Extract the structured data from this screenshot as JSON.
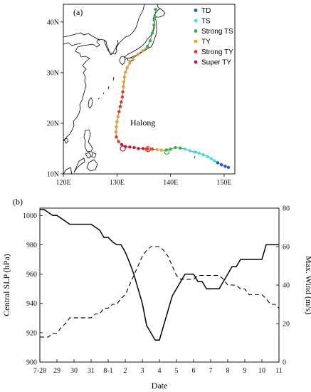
{
  "chart_data": [
    {
      "type": "scatter",
      "panel_label": "(a)",
      "annotation": "Halong",
      "xlim": [
        120,
        152
      ],
      "ylim": [
        10,
        43.5
      ],
      "x_ticks": [
        {
          "value": 120,
          "label": "120E"
        },
        {
          "value": 130,
          "label": "130E"
        },
        {
          "value": 140,
          "label": "140E"
        },
        {
          "value": 150,
          "label": "150E"
        }
      ],
      "y_ticks": [
        {
          "value": 10,
          "label": "10N"
        },
        {
          "value": 20,
          "label": "20N"
        },
        {
          "value": 30,
          "label": "30N"
        },
        {
          "value": 40,
          "label": "40N"
        }
      ],
      "legend_position": "top-right",
      "categories": [
        {
          "key": "TD",
          "name": "TD",
          "color": "#1f55d6"
        },
        {
          "key": "TS",
          "name": "TS",
          "color": "#3fe0dc"
        },
        {
          "key": "STS",
          "name": "Strong TS",
          "color": "#2fb83a"
        },
        {
          "key": "TY",
          "name": "TY",
          "color": "#f0a020"
        },
        {
          "key": "STY",
          "name": "Strong TY",
          "color": "#e43a1f"
        },
        {
          "key": "SuperTY",
          "name": "Super TY",
          "color": "#d3143a"
        }
      ],
      "track": [
        {
          "lon": 150.8,
          "lat": 11.3,
          "cat": "TD"
        },
        {
          "lon": 150.2,
          "lat": 11.5,
          "cat": "TD"
        },
        {
          "lon": 149.5,
          "lat": 11.8,
          "cat": "TD"
        },
        {
          "lon": 148.8,
          "lat": 12.2,
          "cat": "TD"
        },
        {
          "lon": 148.2,
          "lat": 12.6,
          "cat": "TS"
        },
        {
          "lon": 147.6,
          "lat": 13.0,
          "cat": "TS"
        },
        {
          "lon": 146.9,
          "lat": 13.4,
          "cat": "TS"
        },
        {
          "lon": 146.1,
          "lat": 13.8,
          "cat": "TS"
        },
        {
          "lon": 145.3,
          "lat": 14.1,
          "cat": "TS"
        },
        {
          "lon": 144.5,
          "lat": 14.3,
          "cat": "TS"
        },
        {
          "lon": 143.6,
          "lat": 14.6,
          "cat": "TS"
        },
        {
          "lon": 142.7,
          "lat": 14.9,
          "cat": "TS"
        },
        {
          "lon": 141.8,
          "lat": 15.1,
          "cat": "STS"
        },
        {
          "lon": 140.9,
          "lat": 15.2,
          "cat": "STS"
        },
        {
          "lon": 140.0,
          "lat": 14.9,
          "cat": "STS"
        },
        {
          "lon": 139.2,
          "lat": 14.7,
          "cat": "STS"
        },
        {
          "lon": 138.3,
          "lat": 14.7,
          "cat": "TY"
        },
        {
          "lon": 137.5,
          "lat": 14.8,
          "cat": "TY"
        },
        {
          "lon": 136.6,
          "lat": 14.9,
          "cat": "STY"
        },
        {
          "lon": 135.7,
          "lat": 14.9,
          "cat": "STY"
        },
        {
          "lon": 134.9,
          "lat": 15.0,
          "cat": "SuperTY"
        },
        {
          "lon": 134.0,
          "lat": 15.0,
          "cat": "SuperTY"
        },
        {
          "lon": 133.2,
          "lat": 15.2,
          "cat": "SuperTY"
        },
        {
          "lon": 132.4,
          "lat": 15.3,
          "cat": "SuperTY"
        },
        {
          "lon": 131.6,
          "lat": 15.4,
          "cat": "SuperTY"
        },
        {
          "lon": 130.9,
          "lat": 15.8,
          "cat": "SuperTY"
        },
        {
          "lon": 130.3,
          "lat": 16.4,
          "cat": "STY"
        },
        {
          "lon": 129.9,
          "lat": 17.3,
          "cat": "STY"
        },
        {
          "lon": 129.8,
          "lat": 18.3,
          "cat": "TY"
        },
        {
          "lon": 129.9,
          "lat": 19.3,
          "cat": "TY"
        },
        {
          "lon": 130.0,
          "lat": 20.3,
          "cat": "TY"
        },
        {
          "lon": 130.2,
          "lat": 21.3,
          "cat": "TY"
        },
        {
          "lon": 130.4,
          "lat": 22.3,
          "cat": "STY"
        },
        {
          "lon": 130.6,
          "lat": 23.3,
          "cat": "STY"
        },
        {
          "lon": 130.8,
          "lat": 24.2,
          "cat": "STY"
        },
        {
          "lon": 131.0,
          "lat": 25.2,
          "cat": "STY"
        },
        {
          "lon": 131.1,
          "lat": 26.2,
          "cat": "STY"
        },
        {
          "lon": 131.2,
          "lat": 27.2,
          "cat": "TY"
        },
        {
          "lon": 131.3,
          "lat": 28.2,
          "cat": "TY"
        },
        {
          "lon": 131.4,
          "lat": 29.1,
          "cat": "TY"
        },
        {
          "lon": 131.6,
          "lat": 30.1,
          "cat": "TY"
        },
        {
          "lon": 131.9,
          "lat": 31.0,
          "cat": "TY"
        },
        {
          "lon": 132.4,
          "lat": 31.9,
          "cat": "TY"
        },
        {
          "lon": 133.0,
          "lat": 32.8,
          "cat": "TY"
        },
        {
          "lon": 133.9,
          "lat": 33.6,
          "cat": "TY"
        },
        {
          "lon": 134.8,
          "lat": 34.3,
          "cat": "TY"
        },
        {
          "lon": 135.7,
          "lat": 35.2,
          "cat": "STS"
        },
        {
          "lon": 136.2,
          "lat": 36.3,
          "cat": "STS"
        },
        {
          "lon": 136.6,
          "lat": 37.8,
          "cat": "STS"
        },
        {
          "lon": 136.9,
          "lat": 39.4,
          "cat": "STS"
        },
        {
          "lon": 137.1,
          "lat": 41.0,
          "cat": "STS"
        },
        {
          "lon": 137.2,
          "lat": 42.5,
          "cat": "STS"
        }
      ],
      "open_circles": [
        {
          "lon": 131.1,
          "lat": 15.0,
          "cat": "SuperTY"
        },
        {
          "lon": 135.8,
          "lat": 14.9,
          "cat": "STY"
        },
        {
          "lon": 139.3,
          "lat": 14.4,
          "cat": "STS"
        }
      ]
    },
    {
      "type": "line",
      "panel_label": "(b)",
      "xlabel": "Date",
      "ylabel_left": "Central SLP (hPa)",
      "ylabel_right": "Max. Wind (m/s)",
      "x_tick_labels": [
        "7-28",
        "29",
        "30",
        "31",
        "8-1",
        "2",
        "3",
        "4",
        "5",
        "6",
        "7",
        "8",
        "9",
        "10",
        "11"
      ],
      "xlim": [
        0,
        14
      ],
      "ylim_left": [
        900,
        1005
      ],
      "ylim_right": [
        0,
        80
      ],
      "y_ticks_left": [
        900,
        920,
        940,
        960,
        980,
        1000
      ],
      "y_ticks_right": [
        0,
        20,
        40,
        60,
        80
      ],
      "series": [
        {
          "name": "Central SLP (hPa)",
          "axis": "left",
          "style": "solid",
          "x": [
            0,
            0.25,
            0.5,
            0.75,
            1.0,
            1.25,
            1.5,
            1.75,
            2.0,
            2.25,
            2.5,
            2.75,
            3.0,
            3.25,
            3.5,
            3.75,
            4.0,
            4.25,
            4.5,
            4.75,
            5.0,
            5.25,
            5.5,
            5.75,
            6.0,
            6.25,
            6.5,
            6.75,
            7.0,
            7.25,
            7.5,
            7.75,
            8.0,
            8.25,
            8.5,
            8.75,
            9.0,
            9.25,
            9.5,
            9.75,
            10.0,
            10.25,
            10.5,
            10.75,
            11.0,
            11.25,
            11.5,
            11.75,
            12.0,
            12.25,
            12.5,
            12.75,
            13.0,
            13.25,
            13.5,
            13.75,
            14.0
          ],
          "values": [
            1004,
            1004,
            1002,
            1000,
            1000,
            998,
            996,
            994,
            994,
            994,
            994,
            994,
            994,
            992,
            990,
            985,
            985,
            982,
            980,
            980,
            975,
            968,
            960,
            950,
            940,
            925,
            920,
            915,
            915,
            925,
            935,
            945,
            950,
            955,
            960,
            960,
            960,
            955,
            955,
            950,
            950,
            950,
            950,
            955,
            960,
            965,
            965,
            970,
            970,
            970,
            970,
            970,
            970,
            980,
            980,
            980,
            980
          ]
        },
        {
          "name": "Max. Wind (m/s)",
          "axis": "right",
          "style": "dashed",
          "x": [
            0,
            0.25,
            0.5,
            0.75,
            1.0,
            1.25,
            1.5,
            1.75,
            2.0,
            2.25,
            2.5,
            2.75,
            3.0,
            3.25,
            3.5,
            3.75,
            4.0,
            4.25,
            4.5,
            4.75,
            5.0,
            5.25,
            5.5,
            5.75,
            6.0,
            6.25,
            6.5,
            6.75,
            7.0,
            7.25,
            7.5,
            7.75,
            8.0,
            8.25,
            8.5,
            8.75,
            9.0,
            9.25,
            9.5,
            9.75,
            10.0,
            10.25,
            10.5,
            10.75,
            11.0,
            11.25,
            11.5,
            11.75,
            12.0,
            12.25,
            12.5,
            12.75,
            13.0,
            13.25,
            13.5,
            13.75,
            14.0
          ],
          "values": [
            13,
            13,
            13,
            15,
            15,
            18,
            20,
            23,
            23,
            23,
            23,
            23,
            23,
            25,
            25,
            28,
            28,
            30,
            30,
            33,
            35,
            40,
            45,
            50,
            55,
            58,
            60,
            60,
            60,
            58,
            55,
            50,
            45,
            43,
            43,
            43,
            43,
            45,
            45,
            45,
            45,
            45,
            45,
            43,
            40,
            40,
            40,
            38,
            38,
            35,
            35,
            35,
            35,
            33,
            30,
            30,
            28
          ]
        }
      ]
    }
  ]
}
